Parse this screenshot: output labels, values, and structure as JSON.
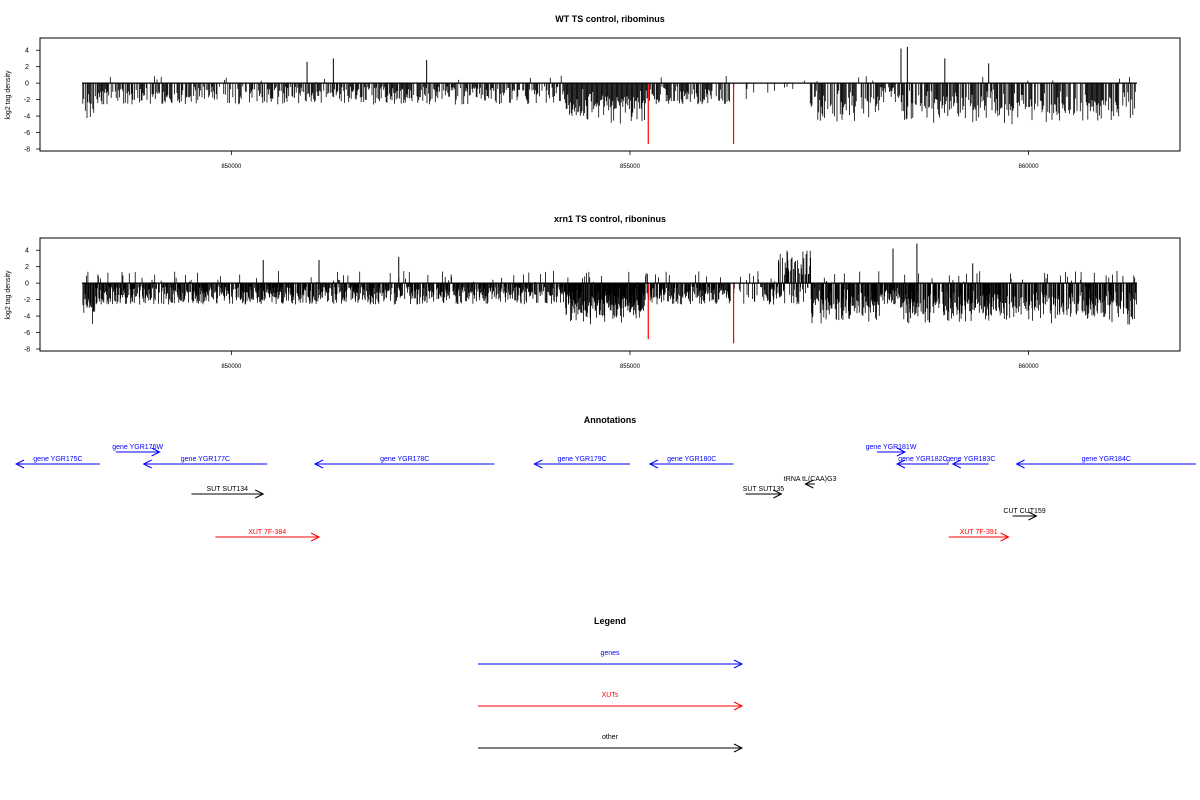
{
  "colors": {
    "gene": "#0000ff",
    "xut": "#ff0000",
    "other": "#000000",
    "highlight": "#ff0000",
    "bar": "#000000"
  },
  "tracks": [
    {
      "title": "WT TS control, ribominus",
      "ylabel": "log2 tag density",
      "ylim": [
        -8,
        5
      ],
      "yticks": [
        4,
        2,
        0,
        -2,
        -4,
        -6,
        -8
      ],
      "xlim": [
        847600,
        861900
      ],
      "xticks": [
        850000,
        855000,
        860000
      ],
      "highlight_bars": [
        [
          855230,
          -7.4
        ],
        [
          856300,
          -7.4
        ]
      ],
      "spikes": [
        [
          850950,
          2.6
        ],
        [
          851280,
          3.0
        ],
        [
          852450,
          2.8
        ],
        [
          858400,
          4.2
        ],
        [
          858480,
          4.4
        ],
        [
          858950,
          3.0
        ],
        [
          859500,
          2.4
        ]
      ]
    },
    {
      "title": "xrn1 TS control, riboninus",
      "ylabel": "log2 tag density",
      "ylim": [
        -8,
        5
      ],
      "yticks": [
        4,
        2,
        0,
        -2,
        -4,
        -6,
        -8
      ],
      "xlim": [
        847600,
        861900
      ],
      "xticks": [
        850000,
        855000,
        860000
      ],
      "highlight_bars": [
        [
          855230,
          -6.8
        ],
        [
          856300,
          -7.3
        ]
      ],
      "spikes": [
        [
          850400,
          2.8
        ],
        [
          851100,
          2.8
        ],
        [
          852100,
          3.2
        ],
        [
          858300,
          4.2
        ],
        [
          858600,
          4.8
        ],
        [
          859300,
          2.4
        ]
      ]
    }
  ],
  "annotations": {
    "title": "Annotations",
    "xlim": [
      847600,
      861900
    ],
    "features": [
      {
        "label": "gene YGR175C",
        "type": "gene",
        "start": 847300,
        "end": 848350,
        "strand": "-",
        "row": 1
      },
      {
        "label": "gene YGR176W",
        "type": "gene",
        "start": 848550,
        "end": 849100,
        "strand": "+",
        "row": 0
      },
      {
        "label": "gene YGR177C",
        "type": "gene",
        "start": 848900,
        "end": 850450,
        "strand": "-",
        "row": 1
      },
      {
        "label": "gene YGR178C",
        "type": "gene",
        "start": 851050,
        "end": 853300,
        "strand": "-",
        "row": 1
      },
      {
        "label": "gene YGR179C",
        "type": "gene",
        "start": 853800,
        "end": 855000,
        "strand": "-",
        "row": 1
      },
      {
        "label": "gene YGR180C",
        "type": "gene",
        "start": 855250,
        "end": 856300,
        "strand": "-",
        "row": 1
      },
      {
        "label": "gene YGR181W",
        "type": "gene",
        "start": 858100,
        "end": 858450,
        "strand": "+",
        "row": 0
      },
      {
        "label": "gene YGR182C",
        "type": "gene",
        "start": 858350,
        "end": 859000,
        "strand": "-",
        "row": 1
      },
      {
        "label": "gene YGR183C",
        "type": "gene",
        "start": 859050,
        "end": 859500,
        "strand": "-",
        "row": 1
      },
      {
        "label": "gene YGR184C",
        "type": "gene",
        "start": 859850,
        "end": 862100,
        "strand": "-",
        "row": 1
      },
      {
        "label": "tRNA tL(CAA)G3",
        "type": "other",
        "start": 857200,
        "end": 857320,
        "strand": "-",
        "row": 2
      },
      {
        "label": "SUT SUT134",
        "type": "other",
        "start": 849500,
        "end": 850400,
        "strand": "+",
        "row": 3
      },
      {
        "label": "SUT SUT135",
        "type": "other",
        "start": 856450,
        "end": 856900,
        "strand": "+",
        "row": 3
      },
      {
        "label": "CUT CUT159",
        "type": "other",
        "start": 859800,
        "end": 860100,
        "strand": "+",
        "row": 4
      },
      {
        "label": "XUT 7F-384",
        "type": "xut",
        "start": 849800,
        "end": 851100,
        "strand": "+",
        "row": 5
      },
      {
        "label": "XUT 7F-391",
        "type": "xut",
        "start": 859000,
        "end": 859750,
        "strand": "+",
        "row": 5
      }
    ]
  },
  "legend": {
    "title": "Legend",
    "items": [
      {
        "label": "genes",
        "type": "gene"
      },
      {
        "label": "XUTs",
        "type": "xut"
      },
      {
        "label": "other",
        "type": "other"
      }
    ]
  }
}
